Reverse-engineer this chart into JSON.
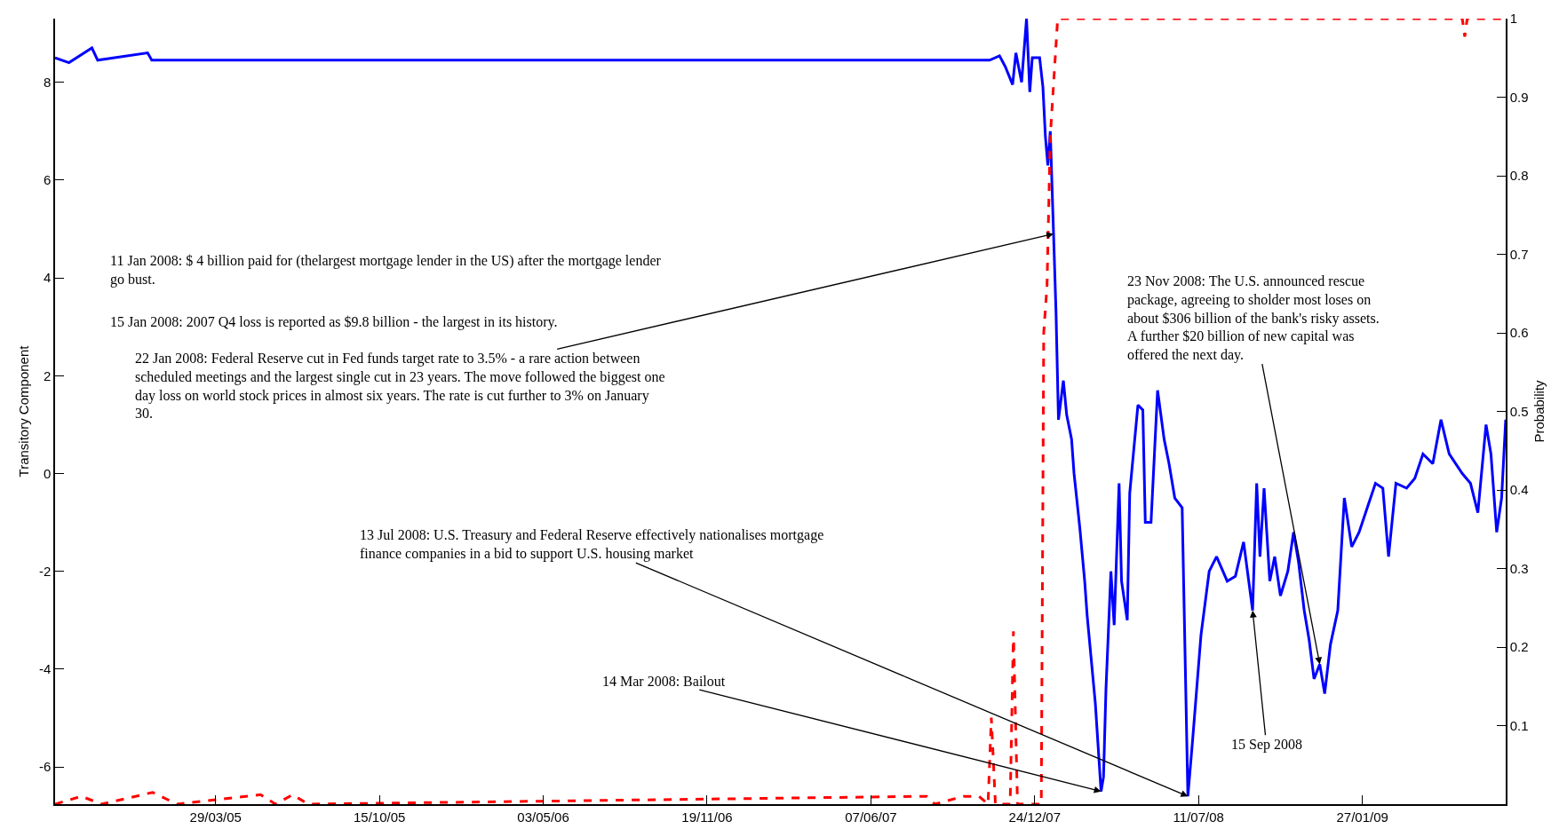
{
  "chart_data": {
    "type": "line",
    "ylabel": "Transitory Component",
    "y2label": "Probability",
    "xlim": [
      "2004-09-14",
      "2009-07-21"
    ],
    "xticks": [
      {
        "value": "2005-03-29",
        "label": "29/03/05"
      },
      {
        "value": "2005-10-15",
        "label": "15/10/05"
      },
      {
        "value": "2006-05-03",
        "label": "03/05/06"
      },
      {
        "value": "2006-11-19",
        "label": "19/11/06"
      },
      {
        "value": "2007-06-07",
        "label": "07/06/07"
      },
      {
        "value": "2007-12-24",
        "label": "24/12/07"
      },
      {
        "value": "2008-07-11",
        "label": "11/07/08"
      },
      {
        "value": "2009-01-27",
        "label": "27/01/09"
      }
    ],
    "ylim": [
      -6.76,
      9.3
    ],
    "yticks": [
      -6,
      -4,
      -2,
      0,
      2,
      4,
      6,
      8
    ],
    "y2lim": [
      0,
      1
    ],
    "y2ticks": [
      0.1,
      0.2,
      0.3,
      0.4,
      0.5,
      0.6,
      0.7,
      0.8,
      0.9,
      1
    ],
    "series": [
      {
        "color": "#0000ff",
        "line_style": "solid",
        "x": [
          "2004-09-14",
          "2004-10-01",
          "2004-10-29",
          "2004-11-05",
          "2005-01-05",
          "2005-01-10",
          "2005-06-01",
          "2006-06-01",
          "2007-06-01",
          "2007-10-30",
          "2007-11-11",
          "2007-11-18",
          "2007-11-27",
          "2007-12-01",
          "2007-12-08",
          "2007-12-14",
          "2007-12-18",
          "2007-12-21",
          "2007-12-30",
          "2008-01-03",
          "2008-01-06",
          "2008-01-09",
          "2008-01-12",
          "2008-01-16",
          "2008-01-19",
          "2008-01-22",
          "2008-01-28",
          "2008-02-01",
          "2008-02-07",
          "2008-02-10",
          "2008-02-17",
          "2008-02-23",
          "2008-02-26",
          "2008-03-07",
          "2008-03-14",
          "2008-03-17",
          "2008-03-20",
          "2008-03-26",
          "2008-03-30",
          "2008-04-05",
          "2008-04-08",
          "2008-04-15",
          "2008-04-18",
          "2008-04-28",
          "2008-05-04",
          "2008-05-07",
          "2008-05-14",
          "2008-05-22",
          "2008-05-30",
          "2008-06-05",
          "2008-06-12",
          "2008-06-21",
          "2008-06-28",
          "2008-07-04",
          "2008-07-14",
          "2008-07-24",
          "2008-08-02",
          "2008-08-15",
          "2008-08-25",
          "2008-09-04",
          "2008-09-15",
          "2008-09-20",
          "2008-09-24",
          "2008-09-29",
          "2008-10-06",
          "2008-10-12",
          "2008-10-19",
          "2008-10-28",
          "2008-11-04",
          "2008-11-10",
          "2008-11-17",
          "2008-11-23",
          "2008-11-29",
          "2008-12-06",
          "2008-12-12",
          "2008-12-19",
          "2008-12-28",
          "2009-01-05",
          "2009-01-14",
          "2009-01-23",
          "2009-02-02",
          "2009-02-12",
          "2009-02-21",
          "2009-02-28",
          "2009-03-09",
          "2009-03-22",
          "2009-04-01",
          "2009-04-11",
          "2009-04-23",
          "2009-05-03",
          "2009-05-13",
          "2009-05-29",
          "2009-06-08",
          "2009-06-17",
          "2009-06-27",
          "2009-07-03",
          "2009-07-10",
          "2009-07-16",
          "2009-07-21"
        ],
        "values": [
          8.5,
          8.4,
          8.7,
          8.45,
          8.6,
          8.45,
          8.45,
          8.45,
          8.45,
          8.45,
          8.54,
          8.32,
          7.95,
          8.6,
          8.0,
          9.3,
          7.8,
          8.5,
          8.5,
          7.9,
          6.9,
          6.3,
          7.0,
          4.9,
          3.3,
          1.1,
          1.9,
          1.2,
          0.7,
          0.0,
          -1.1,
          -2.2,
          -2.9,
          -4.7,
          -6.5,
          -6.2,
          -4.4,
          -2.0,
          -3.1,
          -0.2,
          -2.2,
          -3.0,
          -0.4,
          1.4,
          1.3,
          -1.0,
          -1.0,
          1.7,
          0.7,
          0.2,
          -0.5,
          -0.7,
          -6.6,
          -5.4,
          -3.3,
          -2.0,
          -1.7,
          -2.2,
          -2.1,
          -1.4,
          -2.8,
          -0.2,
          -1.7,
          -0.3,
          -2.2,
          -1.7,
          -2.5,
          -2.0,
          -1.2,
          -1.8,
          -2.8,
          -3.4,
          -4.2,
          -3.9,
          -4.5,
          -3.5,
          -2.8,
          -0.5,
          -1.5,
          -1.2,
          -0.7,
          -0.2,
          -0.3,
          -1.7,
          -0.2,
          -0.3,
          -0.1,
          0.4,
          0.2,
          1.1,
          0.4,
          0.0,
          -0.2,
          -0.8,
          1.0,
          0.4,
          -1.2,
          -0.5,
          1.1
        ]
      },
      {
        "color": "#ff0000",
        "line_style": "dashed",
        "axis": "y2",
        "x": [
          "2004-09-14",
          "2004-10-16",
          "2004-11-10",
          "2005-01-11",
          "2005-02-10",
          "2005-05-23",
          "2005-06-10",
          "2005-07-01",
          "2005-07-20",
          "2007-08-14",
          "2007-08-24",
          "2007-09-28",
          "2007-10-17",
          "2007-10-28",
          "2007-11-01",
          "2007-11-06",
          "2007-11-24",
          "2007-11-28",
          "2007-12-03",
          "2008-01-01",
          "2008-01-04",
          "2008-01-08",
          "2008-01-12",
          "2008-01-21",
          "2009-05-29",
          "2009-06-01",
          "2009-06-04",
          "2009-07-21"
        ],
        "values": [
          0,
          0.01,
          0,
          0.015,
          0,
          0.012,
          0,
          0.012,
          0,
          0.01,
          0,
          0.01,
          0.01,
          0,
          0.11,
          0,
          0,
          0.22,
          0,
          0,
          0.6,
          0.66,
          0.85,
          1,
          1,
          0.977,
          1,
          1
        ]
      }
    ],
    "annotations": [
      "11 Jan 2008: $ 4 billion paid for (thelargest mortgage lender in the US) after the mortgage lender go bust.",
      "15 Jan 2008: 2007 Q4 loss is reported as $9.8 billion - the largest in its history.",
      {
        "text": "22 Jan 2008: Federal Reserve cut in Fed funds target rate to 3.5% - a rare action between scheduled meetings and the largest single cut in 23 years. The move followed the biggest one day loss on world stock prices in almost six years. The rate is cut further to 3% on January 30.",
        "x": "2008-01-16",
        "y": 4.9
      },
      {
        "text": "23 Nov 2008: The U.S. announced rescue package, agreeing to sholder most loses on about $306 billion of the bank's risky assets. A further $20 billion of new capital was offered the next day.",
        "x": "2008-12-06",
        "y": -3.9
      },
      {
        "text": "13 Jul 2008: U.S. Treasury and Federal Reserve effectively nationalises mortgage finance companies in a bid to support U.S. housing market",
        "x": "2008-06-28",
        "y": -6.6
      },
      {
        "text": "14 Mar 2008: Bailout",
        "x": "2008-03-14",
        "y": -6.5
      },
      {
        "text": "15 Sep 2008",
        "x": "2008-09-15",
        "y": -2.8
      }
    ]
  }
}
